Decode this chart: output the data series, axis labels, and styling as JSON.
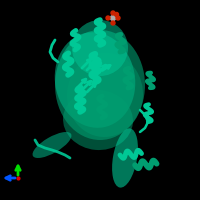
{
  "background_color": "#000000",
  "protein_color": "#00c896",
  "protein_color_dark": "#009e70",
  "ligand_color_red": "#cc2200",
  "ligand_color_grey": "#aaaaaa",
  "axis_green": "#00dd00",
  "axis_blue": "#0055ff",
  "axis_red": "#dd0000",
  "figsize": [
    2.0,
    2.0
  ],
  "dpi": 100
}
